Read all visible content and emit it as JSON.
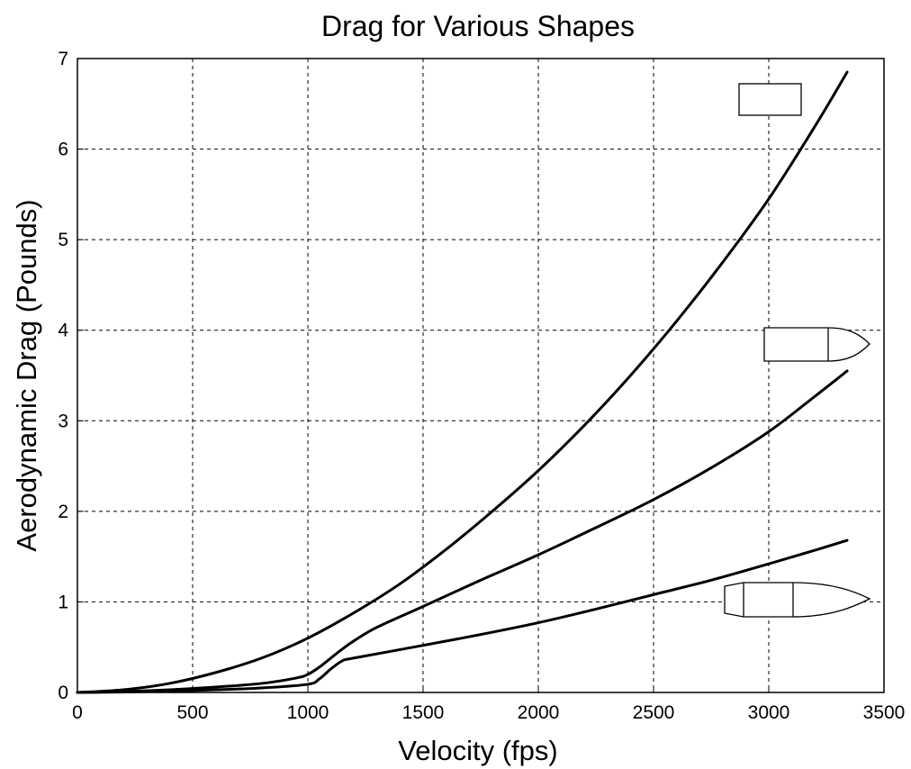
{
  "chart_data": {
    "type": "line",
    "title": "Drag for Various Shapes",
    "xlabel": "Velocity (fps)",
    "ylabel": "Aerodynamic Drag (Pounds)",
    "xlim": [
      0,
      3500
    ],
    "ylim": [
      0,
      7
    ],
    "xticks": [
      0,
      500,
      1000,
      1500,
      2000,
      2500,
      3000,
      3500
    ],
    "yticks": [
      0,
      1,
      2,
      3,
      4,
      5,
      6,
      7
    ],
    "grid": true,
    "legend": "shape icons at right end of each curve",
    "series": [
      {
        "shape_icon": "cylinder-icon",
        "x": [
          0,
          200,
          400,
          600,
          800,
          1000,
          1200,
          1400,
          1600,
          1800,
          2000,
          2200,
          2400,
          2600,
          2800,
          3000,
          3200,
          3340
        ],
        "y": [
          0.0,
          0.03,
          0.1,
          0.22,
          0.38,
          0.6,
          0.88,
          1.2,
          1.58,
          2.0,
          2.45,
          2.95,
          3.5,
          4.1,
          4.75,
          5.45,
          6.25,
          6.85
        ]
      },
      {
        "shape_icon": "blunt-nose-bullet-icon",
        "x": [
          0,
          200,
          400,
          600,
          800,
          950,
          1000,
          1050,
          1100,
          1150,
          1200,
          1300,
          1500,
          1750,
          2000,
          2250,
          2500,
          2750,
          3000,
          3200,
          3340
        ],
        "y": [
          0.0,
          0.01,
          0.03,
          0.06,
          0.1,
          0.16,
          0.2,
          0.28,
          0.38,
          0.48,
          0.57,
          0.72,
          0.95,
          1.24,
          1.52,
          1.82,
          2.13,
          2.48,
          2.88,
          3.27,
          3.55
        ]
      },
      {
        "shape_icon": "boat-tail-bullet-icon",
        "x": [
          0,
          200,
          400,
          600,
          800,
          1000,
          1050,
          1100,
          1150,
          1200,
          1500,
          1750,
          2000,
          2250,
          2500,
          2750,
          3000,
          3200,
          3340
        ],
        "y": [
          0.0,
          0.005,
          0.015,
          0.03,
          0.05,
          0.09,
          0.15,
          0.26,
          0.35,
          0.38,
          0.52,
          0.64,
          0.77,
          0.92,
          1.08,
          1.24,
          1.42,
          1.57,
          1.68
        ]
      }
    ]
  }
}
